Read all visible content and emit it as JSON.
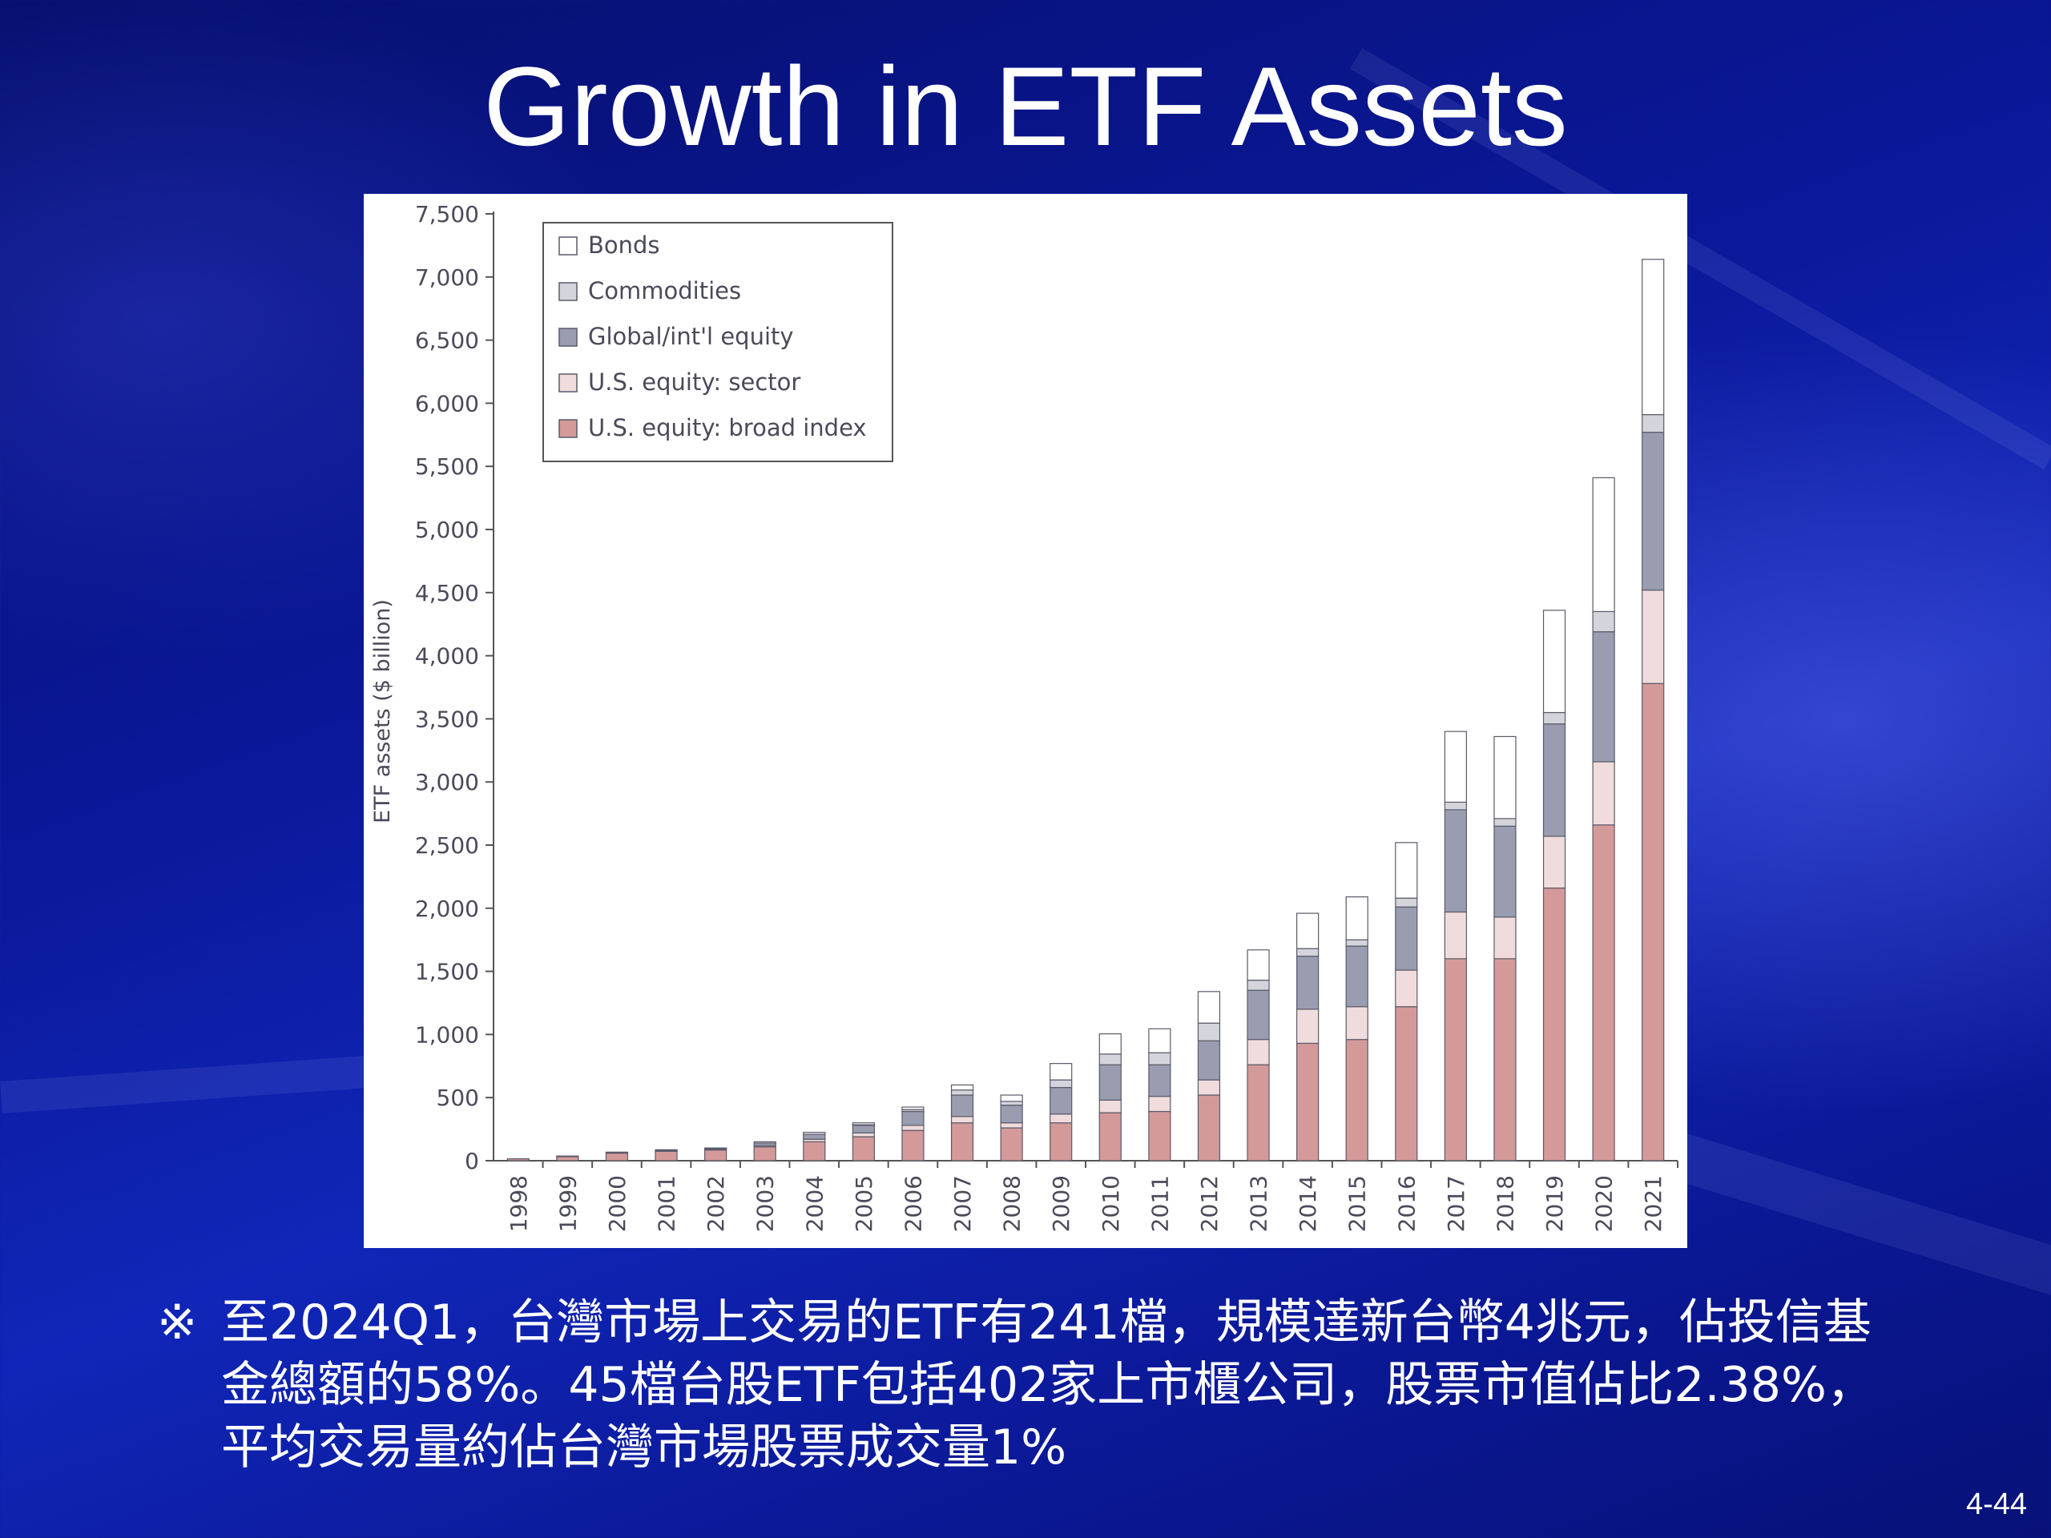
{
  "slide": {
    "title": "Growth in ETF Assets",
    "note_mark": "※",
    "note_text": "至2024Q1，台灣市場上交易的ETF有241檔，規模達新台幣4兆元，佔投信基金總額的58%。45檔台股ETF包括402家上市櫃公司，股票市值佔比2.38%，平均交易量約佔台灣市場股票成交量1%",
    "page_number": "4-44"
  },
  "chart_data": {
    "type": "bar",
    "stacked": true,
    "title": "",
    "xlabel": "",
    "ylabel": "ETF assets ($ billion)",
    "ylim": [
      0,
      7500
    ],
    "yticks": [
      0,
      500,
      1000,
      1500,
      2000,
      2500,
      3000,
      3500,
      4000,
      4500,
      5000,
      5500,
      6000,
      6500,
      7000,
      7500
    ],
    "ytick_labels": [
      "0",
      "500",
      "1,000",
      "1,500",
      "2,000",
      "2,500",
      "3,000",
      "3,500",
      "4,000",
      "4,500",
      "5,000",
      "5,500",
      "6,000",
      "6,500",
      "7,000",
      "7,500"
    ],
    "grid": false,
    "legend_position": "top-left",
    "categories": [
      "1998",
      "1999",
      "2000",
      "2001",
      "2002",
      "2003",
      "2004",
      "2005",
      "2006",
      "2007",
      "2008",
      "2009",
      "2010",
      "2011",
      "2012",
      "2013",
      "2014",
      "2015",
      "2016",
      "2017",
      "2018",
      "2019",
      "2020",
      "2021"
    ],
    "series": [
      {
        "name": "U.S. equity: broad index",
        "color": "#d49a9a",
        "values": [
          15,
          33,
          60,
          75,
          85,
          110,
          150,
          190,
          240,
          300,
          260,
          300,
          380,
          390,
          520,
          760,
          930,
          960,
          1220,
          1600,
          1600,
          2160,
          2660,
          3780
        ]
      },
      {
        "name": "U.S. equity: sector",
        "color": "#f0dcdc",
        "values": [
          0,
          2,
          4,
          6,
          6,
          10,
          20,
          30,
          40,
          50,
          40,
          70,
          100,
          120,
          120,
          200,
          270,
          260,
          290,
          370,
          330,
          410,
          500,
          740
        ]
      },
      {
        "name": "Global/int'l equity",
        "color": "#9a9cb0",
        "values": [
          0,
          2,
          4,
          6,
          6,
          20,
          40,
          60,
          110,
          170,
          140,
          210,
          280,
          250,
          310,
          390,
          420,
          480,
          500,
          810,
          720,
          890,
          1030,
          1250
        ]
      },
      {
        "name": "Commodities",
        "color": "#d4d5dc",
        "values": [
          0,
          0,
          0,
          0,
          0,
          0,
          0,
          5,
          15,
          40,
          30,
          60,
          85,
          95,
          140,
          80,
          60,
          50,
          70,
          60,
          60,
          90,
          160,
          140
        ]
      },
      {
        "name": "Bonds",
        "color": "#ffffff",
        "values": [
          0,
          0,
          0,
          0,
          4,
          10,
          15,
          15,
          20,
          40,
          50,
          130,
          160,
          190,
          250,
          240,
          280,
          340,
          440,
          560,
          650,
          810,
          1060,
          1230
        ]
      }
    ]
  }
}
